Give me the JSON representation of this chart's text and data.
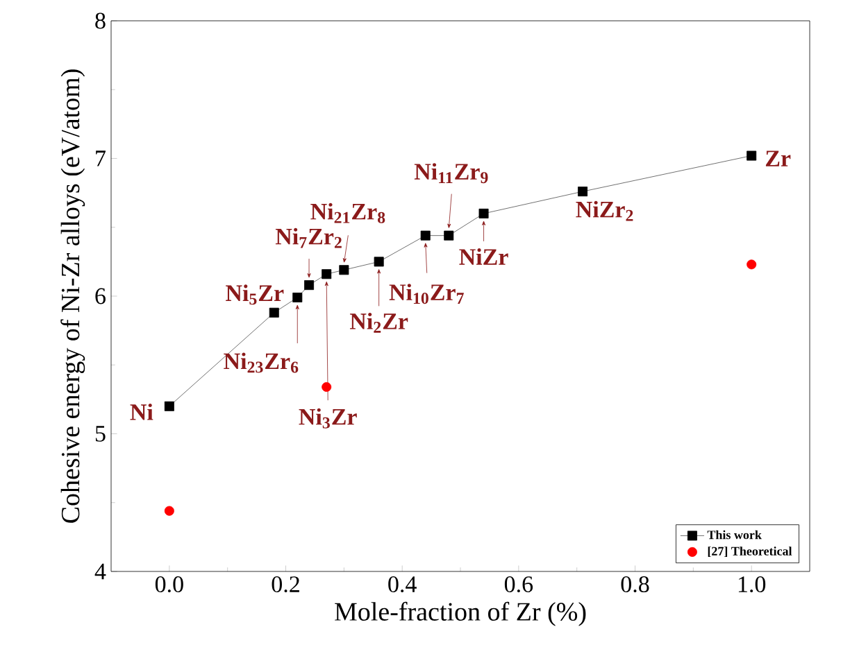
{
  "chart_data": {
    "type": "line",
    "xlabel": "Mole-fraction of Zr (%)",
    "ylabel": "Cohesive energy of Ni-Zr alloys (eV/atom)",
    "series": [
      {
        "name": "This work",
        "color": "#000000",
        "marker": "square",
        "x": [
          0,
          0.18,
          0.22,
          0.24,
          0.27,
          0.3,
          0.36,
          0.44,
          0.48,
          0.54,
          0.71,
          1.0
        ],
        "values": [
          5.2,
          5.88,
          5.99,
          6.08,
          6.16,
          6.19,
          6.25,
          6.44,
          6.44,
          6.6,
          6.76,
          7.02
        ]
      },
      {
        "name": "[27] Theoretical",
        "type": "scatter",
        "color": "#ff0000",
        "marker": "circle",
        "x": [
          0,
          0.27,
          1.0
        ],
        "values": [
          4.44,
          5.34,
          6.23
        ]
      }
    ],
    "xlim": [
      -0.1,
      1.1
    ],
    "ylim": [
      4,
      8
    ],
    "xticks": [
      {
        "value": 0,
        "label": "0.0"
      },
      {
        "value": 0.2,
        "label": "0.2"
      },
      {
        "value": 0.4,
        "label": "0.4"
      },
      {
        "value": 0.6,
        "label": "0.6"
      },
      {
        "value": 0.8,
        "label": "0.8"
      },
      {
        "value": 1.0,
        "label": "1.0"
      }
    ],
    "yticks": [
      4,
      5,
      6,
      7,
      8
    ],
    "legend": "bottom right",
    "grid": false,
    "annotations": [
      {
        "text": "Ni",
        "x": 0,
        "y": 5.2
      },
      {
        "text": "Ni$_{5}$Zr",
        "x": 0.18,
        "y": 5.88
      },
      {
        "text": "Ni$_{23}$Zr$_{6}$",
        "x": 0.22,
        "y": 5.99
      },
      {
        "text": "Ni$_{7}$Zr$_{2}$",
        "x": 0.24,
        "y": 6.08
      },
      {
        "text": "Ni$_{3}$Zr",
        "x": 0.27,
        "y": 6.16
      },
      {
        "text": "Ni$_{21}$Zr$_{8}$",
        "x": 0.3,
        "y": 6.19
      },
      {
        "text": "Ni$_{2}$Zr",
        "x": 0.36,
        "y": 6.25
      },
      {
        "text": "Ni$_{10}$Zr$_{7}$",
        "x": 0.44,
        "y": 6.44
      },
      {
        "text": "Ni$_{11}$Zr$_{9}$",
        "x": 0.48,
        "y": 6.44
      },
      {
        "text": "NiZr",
        "x": 0.54,
        "y": 6.6
      },
      {
        "text": "NiZr$_{2}$",
        "x": 0.71,
        "y": 6.76
      },
      {
        "text": "Zr",
        "x": 1.0,
        "y": 7.02
      }
    ]
  }
}
